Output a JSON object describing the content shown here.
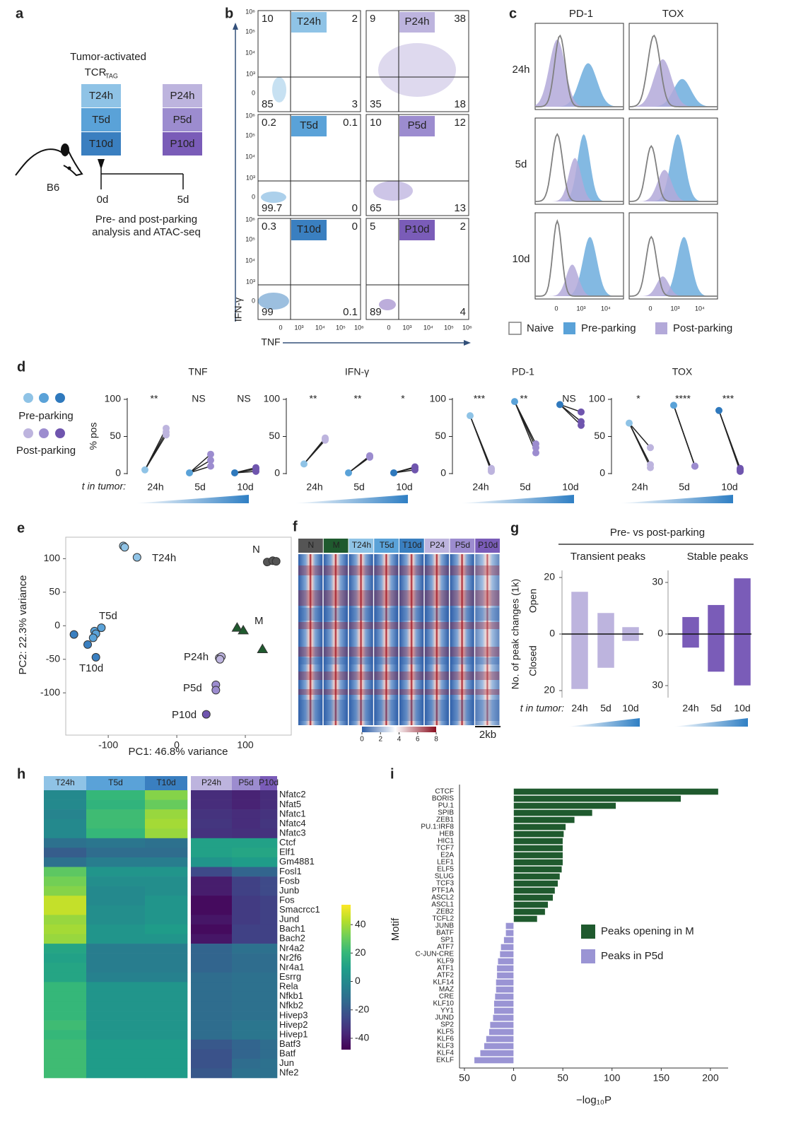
{
  "panels": {
    "letters": [
      "a",
      "b",
      "c",
      "d",
      "e",
      "f",
      "g",
      "h",
      "i"
    ],
    "a": {
      "title": "Tumor-activated",
      "tcr": "TCR",
      "tcr_sub": "TAG",
      "tumor_boxes": [
        "T24h",
        "T5d",
        "T10d"
      ],
      "tumor_colors": [
        "#8fc3e6",
        "#5aa2d8",
        "#3a7fc0"
      ],
      "parked_boxes": [
        "P24h",
        "P5d",
        "P10d"
      ],
      "parked_colors": [
        "#bdb4de",
        "#9c8ccf",
        "#7a5cb8"
      ],
      "mouse": "B6",
      "timepoints": [
        "0d",
        "5d"
      ],
      "caption": [
        "Pre- and post-parking",
        "analysis and ATAC-seq"
      ]
    },
    "b": {
      "ylabel": "IFN-γ",
      "xlabel": "TNF",
      "ticks": [
        "0",
        "10³",
        "10⁴",
        "10⁵",
        "10⁶"
      ],
      "plots": [
        {
          "label": "T24h",
          "color": "#8fc3e6",
          "quadrants": [
            10,
            2,
            85,
            3
          ]
        },
        {
          "label": "P24h",
          "color": "#bdb4de",
          "quadrants": [
            9,
            38,
            35,
            18
          ]
        },
        {
          "label": "T5d",
          "color": "#5aa2d8",
          "quadrants": [
            0.2,
            0.1,
            99.7,
            0
          ]
        },
        {
          "label": "P5d",
          "color": "#9c8ccf",
          "quadrants": [
            10,
            12,
            65,
            13
          ]
        },
        {
          "label": "T10d",
          "color": "#3a7fc0",
          "quadrants": [
            0.3,
            0,
            99,
            0.1
          ]
        },
        {
          "label": "P10d",
          "color": "#7a5cb8",
          "quadrants": [
            5,
            2,
            89,
            4
          ]
        }
      ]
    },
    "c": {
      "columns": [
        "PD-1",
        "TOX"
      ],
      "rows": [
        "24h",
        "5d",
        "10d"
      ],
      "xticks": [
        "0",
        "10³",
        "10⁴"
      ],
      "legend": [
        {
          "name": "Naive",
          "color": "#808080"
        },
        {
          "name": "Pre-parking",
          "color": "#5aa2d8"
        },
        {
          "name": "Post-parking",
          "color": "#b3a9d9"
        }
      ]
    },
    "f": {
      "columns": [
        "N",
        "M",
        "T24h",
        "T5d",
        "T10d",
        "P24",
        "P5d",
        "P10d"
      ],
      "colors": [
        "#555555",
        "#1f5a2e",
        "#8fc3e6",
        "#5aa2d8",
        "#3a7fc0",
        "#bdb4de",
        "#9c8ccf",
        "#7a5cb8"
      ],
      "clim": [
        0,
        8
      ],
      "cticks": [
        0,
        2,
        4,
        6,
        8
      ],
      "scale": "2kb"
    },
    "g": {
      "heading": "Pre- vs post-parking",
      "ylabel": "No. of peak changes (1k)"
    }
  },
  "chart_data": [
    {
      "type": "line",
      "title": "TNF",
      "categories": [
        "24h",
        "5d",
        "10d"
      ],
      "ylim": [
        0,
        100
      ],
      "yticks": [
        0,
        50,
        100
      ],
      "ylabel": "% pos",
      "xlabel": "t in tumor:",
      "annotations": [
        "**",
        "NS",
        "NS"
      ],
      "series": [
        {
          "name": "Pre-parking",
          "color": [
            "#8fc3e6",
            "#5aa2d8",
            "#2f79bd"
          ],
          "values": [
            5,
            1,
            1
          ]
        },
        {
          "name": "Post-parking",
          "color": [
            "#bdb4de",
            "#9c8ccf",
            "#6f55ae"
          ],
          "values": [
            [
              52,
              56,
              61
            ],
            [
              10,
              18,
              26
            ],
            [
              3,
              6,
              8
            ]
          ]
        }
      ]
    },
    {
      "type": "line",
      "title": "IFN-γ",
      "categories": [
        "24h",
        "5d",
        "10d"
      ],
      "ylim": [
        0,
        100
      ],
      "yticks": [
        0,
        50,
        100
      ],
      "annotations": [
        "**",
        "**",
        "*"
      ],
      "series": [
        {
          "color": [
            "#8fc3e6",
            "#5aa2d8",
            "#2f79bd"
          ],
          "values": [
            13,
            1,
            1
          ]
        },
        {
          "color": [
            "#bdb4de",
            "#9c8ccf",
            "#6f55ae"
          ],
          "values": [
            [
              45,
              47,
              48
            ],
            [
              22,
              23,
              24
            ],
            [
              5,
              8,
              9
            ]
          ]
        }
      ]
    },
    {
      "type": "line",
      "title": "PD-1",
      "categories": [
        "24h",
        "5d",
        "10d"
      ],
      "ylim": [
        0,
        100
      ],
      "yticks": [
        0,
        50,
        100
      ],
      "annotations": [
        "***",
        "**",
        "NS"
      ],
      "series": [
        {
          "color": [
            "#8fc3e6",
            "#5aa2d8",
            "#2f79bd"
          ],
          "values": [
            78,
            97,
            93
          ]
        },
        {
          "color": [
            "#bdb4de",
            "#9c8ccf",
            "#6f55ae"
          ],
          "values": [
            [
              3,
              5,
              7
            ],
            [
              28,
              35,
              40
            ],
            [
              65,
              70,
              83
            ]
          ]
        }
      ]
    },
    {
      "type": "line",
      "title": "TOX",
      "categories": [
        "24h",
        "5d",
        "10d"
      ],
      "ylim": [
        0,
        100
      ],
      "yticks": [
        0,
        50,
        100
      ],
      "annotations": [
        "*",
        "****",
        "***"
      ],
      "series": [
        {
          "color": [
            "#8fc3e6",
            "#5aa2d8",
            "#2f79bd"
          ],
          "values": [
            68,
            92,
            85
          ]
        },
        {
          "color": [
            "#bdb4de",
            "#9c8ccf",
            "#6f55ae"
          ],
          "values": [
            [
              8,
              12,
              35
            ],
            [
              10,
              10,
              10
            ],
            [
              3,
              5,
              7
            ]
          ]
        }
      ]
    },
    {
      "type": "scatter",
      "xlabel": "PC1: 46.8% variance",
      "ylabel": "PC2: 22.3% variance",
      "xlim": [
        -162,
        167
      ],
      "ylim": [
        -163,
        132
      ],
      "xticks": [
        -100,
        0,
        100
      ],
      "yticks": [
        -100,
        -50,
        0,
        50,
        100
      ],
      "series": [
        {
          "name": "T24h",
          "color": "#8fc3e6",
          "marker": "circle",
          "x": [
            -78,
            -76,
            -58
          ],
          "y": [
            119,
            117,
            102
          ]
        },
        {
          "name": "T5d",
          "color": "#5aa2d8",
          "marker": "circle",
          "x": [
            -120,
            -110,
            -118,
            -122
          ],
          "y": [
            -8,
            -3,
            -12,
            -18
          ]
        },
        {
          "name": "T10d",
          "color": "#3a7fc0",
          "marker": "circle",
          "x": [
            -150,
            -130,
            -118
          ],
          "y": [
            -13,
            -28,
            -47
          ]
        },
        {
          "name": "N",
          "color": "#555555",
          "marker": "circle",
          "x": [
            132,
            140,
            145
          ],
          "y": [
            95,
            97,
            96
          ]
        },
        {
          "name": "M",
          "color": "#1f5a2e",
          "marker": "triangle",
          "x": [
            88,
            97,
            125
          ],
          "y": [
            -3,
            -7,
            -35
          ]
        },
        {
          "name": "P24h",
          "color": "#bdb4de",
          "marker": "circle",
          "x": [
            62,
            65,
            63
          ],
          "y": [
            -48,
            -46,
            -50
          ]
        },
        {
          "name": "P5d",
          "color": "#9c8ccf",
          "marker": "circle",
          "x": [
            57,
            57
          ],
          "y": [
            -88,
            -96
          ]
        },
        {
          "name": "P10d",
          "color": "#6f55ae",
          "marker": "circle",
          "x": [
            43
          ],
          "y": [
            -132
          ]
        }
      ]
    },
    {
      "type": "bar",
      "title": "Transient peaks",
      "categories": [
        "24h",
        "5d",
        "10d"
      ],
      "xlabel": "t in tumor:",
      "color": "#bdb4de",
      "ylim": [
        -22.5,
        22.5
      ],
      "yticks": [
        20,
        0,
        {
          "value": -20,
          "label": "20"
        }
      ],
      "series": [
        {
          "name": "Open",
          "values": [
            15,
            7.5,
            2.5
          ]
        },
        {
          "name": "Closed",
          "values": [
            -19.5,
            -12,
            -2.5
          ]
        }
      ]
    },
    {
      "type": "bar",
      "title": "Stable peaks",
      "categories": [
        "24h",
        "5d",
        "10d"
      ],
      "color": "#7a5cb8",
      "ylim": [
        -37,
        37
      ],
      "yticks": [
        30,
        0,
        {
          "value": -30,
          "label": "30"
        }
      ],
      "series": [
        {
          "values": [
            10,
            17,
            32.5
          ]
        },
        {
          "values": [
            -8,
            -22,
            -30
          ]
        }
      ]
    },
    {
      "type": "heatmap",
      "columns": [
        "T24h",
        "T5d",
        "T10d",
        "P24h",
        "P5d",
        "P10d"
      ],
      "column_colors": [
        "#8fc3e6",
        "#5aa2d8",
        "#3a7fc0",
        "#bdb4de",
        "#9c8ccf",
        "#7a5cb8"
      ],
      "rows": [
        "Nfatc2",
        "Nfat5",
        "Nfatc1",
        "Nfatc4",
        "Nfatc3",
        "Ctcf",
        "Elf1",
        "Gm4881",
        "Fosl1",
        "Fosb",
        "Junb",
        "Fos",
        "Smacrcc1",
        "Jund",
        "Bach1",
        "Bach2",
        "Nr4a2",
        "Nr2f6",
        "Nr4a1",
        "Esrrg",
        "Rela",
        "Nfkb1",
        "Nfkb2",
        "Hivep3",
        "Hivep2",
        "Hivep1",
        "Batf3",
        "Batf",
        "Jun",
        "Nfe2"
      ],
      "values": [
        [
          0,
          20,
          35,
          -35,
          -38,
          -35
        ],
        [
          0,
          18,
          30,
          -35,
          -38,
          -35
        ],
        [
          -2,
          22,
          38,
          -33,
          -35,
          -33
        ],
        [
          0,
          22,
          40,
          -32,
          -35,
          -32
        ],
        [
          0,
          20,
          38,
          -33,
          -34,
          -33
        ],
        [
          -10,
          -8,
          -10,
          10,
          10,
          10
        ],
        [
          -18,
          -12,
          -12,
          10,
          12,
          12
        ],
        [
          -10,
          -5,
          -5,
          5,
          8,
          8
        ],
        [
          28,
          5,
          5,
          -25,
          -15,
          -15
        ],
        [
          32,
          2,
          2,
          -40,
          -28,
          -25
        ],
        [
          35,
          0,
          2,
          -40,
          -28,
          -25
        ],
        [
          45,
          0,
          5,
          -45,
          -30,
          -28
        ],
        [
          45,
          2,
          5,
          -45,
          -30,
          -28
        ],
        [
          38,
          2,
          5,
          -42,
          -30,
          -28
        ],
        [
          40,
          5,
          8,
          -45,
          -28,
          -28
        ],
        [
          38,
          5,
          5,
          -42,
          -28,
          -28
        ],
        [
          12,
          -5,
          -5,
          -15,
          -10,
          -10
        ],
        [
          10,
          -5,
          -5,
          -15,
          -12,
          -12
        ],
        [
          12,
          -5,
          -5,
          -15,
          -12,
          -12
        ],
        [
          12,
          -3,
          -3,
          -12,
          -10,
          -10
        ],
        [
          20,
          5,
          5,
          -12,
          -10,
          -10
        ],
        [
          20,
          5,
          5,
          -12,
          -10,
          -10
        ],
        [
          20,
          5,
          5,
          -12,
          -10,
          -10
        ],
        [
          20,
          5,
          5,
          -12,
          -10,
          -10
        ],
        [
          22,
          5,
          5,
          -12,
          -8,
          -8
        ],
        [
          20,
          5,
          5,
          -12,
          -8,
          -8
        ],
        [
          22,
          8,
          8,
          -20,
          -15,
          -12
        ],
        [
          22,
          8,
          8,
          -22,
          -15,
          -12
        ],
        [
          22,
          8,
          8,
          -22,
          -12,
          -10
        ],
        [
          22,
          8,
          8,
          -20,
          -10,
          -10
        ]
      ],
      "clim": [
        -48,
        54
      ],
      "cticks": [
        40,
        20,
        0,
        -20,
        -40
      ],
      "colormap": "viridis"
    },
    {
      "type": "bar",
      "orientation": "horizontal",
      "xlabel": "−log₁₀P",
      "ylabel": "Motif",
      "xlim": [
        -55,
        218
      ],
      "xticks": [
        {
          "value": -50,
          "label": "50"
        },
        0,
        50,
        100,
        150,
        200
      ],
      "categories": [
        "CTCF",
        "BORIS",
        "PU.1",
        "SPIB",
        "ZEB1",
        "PU.1:IRF8",
        "HEB",
        "HIC1",
        "TCF7",
        "E2A",
        "LEF1",
        "ELF5",
        "SLUG",
        "TCF3",
        "PTF1A",
        "ASCL2",
        "ASCL1",
        "ZEB2",
        "TCFL2",
        "JUNB",
        "BATF",
        "SP1",
        "ATF7",
        "C-JUN-CRE",
        "KLF9",
        "ATF1",
        "ATF2",
        "KLF14",
        "MAZ",
        "CRE",
        "KLF10",
        "YY1",
        "JUND",
        "SP2",
        "KLF5",
        "KLF6",
        "KLF3",
        "KLF4",
        "EKLF"
      ],
      "series": [
        {
          "name": "Peaks opening in M",
          "color": "#1f5a2e",
          "values": [
            208,
            170,
            104,
            80,
            62,
            53,
            51,
            50,
            50,
            50,
            50,
            49,
            47,
            45,
            42,
            40,
            35,
            32,
            24,
            null,
            null,
            null,
            null,
            null,
            null,
            null,
            null,
            null,
            null,
            null,
            null,
            null,
            null,
            null,
            null,
            null,
            null,
            null,
            null
          ]
        },
        {
          "name": "Peaks in P5d",
          "color": "#9a94d4",
          "values": [
            null,
            null,
            null,
            null,
            null,
            null,
            null,
            null,
            null,
            null,
            null,
            null,
            null,
            null,
            null,
            null,
            null,
            null,
            null,
            -8,
            -8,
            -10,
            -13,
            -14,
            -16,
            -17,
            -17,
            -18,
            -18,
            -19,
            -20,
            -20,
            -21,
            -24,
            -25,
            -28,
            -30,
            -34,
            -40
          ]
        }
      ]
    }
  ]
}
